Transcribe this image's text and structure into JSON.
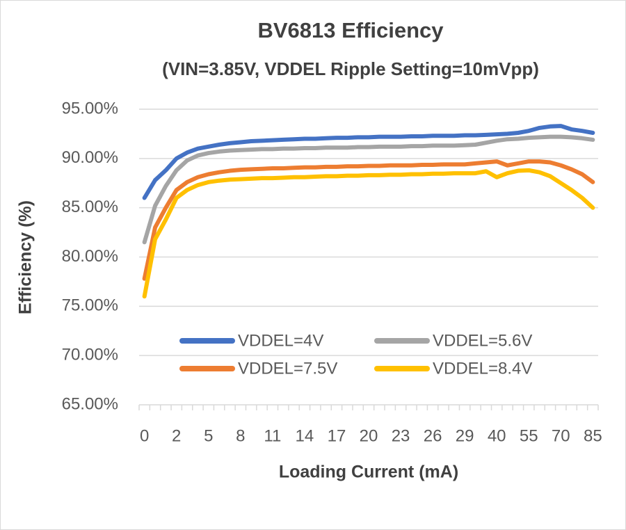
{
  "chart_data": {
    "type": "line",
    "title": "BV6813 Efficiency",
    "subtitle": "(VIN=3.85V, VDDEL Ripple Setting=10mVpp)",
    "x_label": "Loading Current (mA)",
    "y_label": "Efficiency (%)",
    "categories": [
      "0",
      null,
      null,
      "2",
      null,
      null,
      "5",
      null,
      null,
      "8",
      null,
      null,
      "11",
      null,
      null,
      "14",
      null,
      null,
      "17",
      null,
      null,
      "20",
      null,
      null,
      "23",
      null,
      null,
      "26",
      null,
      null,
      "29",
      null,
      null,
      "40",
      null,
      null,
      "55",
      null,
      null,
      "70",
      null,
      null,
      "85"
    ],
    "ylim": [
      65,
      95
    ],
    "yticks": [
      {
        "value": 65,
        "label": "65.00%"
      },
      {
        "value": 70,
        "label": "70.00%"
      },
      {
        "value": 75,
        "label": "75.00%"
      },
      {
        "value": 80,
        "label": "80.00%"
      },
      {
        "value": 85,
        "label": "85.00%"
      },
      {
        "value": 90,
        "label": "90.00%"
      },
      {
        "value": 95,
        "label": "95.00%"
      }
    ],
    "grid": true,
    "legend": "bottom",
    "series": [
      {
        "name": "VDDEL=4V",
        "color": "#4472c4",
        "values": [
          86.0,
          87.8,
          88.8,
          90.0,
          90.6,
          91.0,
          91.2,
          91.4,
          91.55,
          91.65,
          91.75,
          91.8,
          91.85,
          91.9,
          91.95,
          92.0,
          92.0,
          92.05,
          92.1,
          92.1,
          92.15,
          92.15,
          92.2,
          92.2,
          92.2,
          92.25,
          92.25,
          92.3,
          92.3,
          92.3,
          92.35,
          92.35,
          92.4,
          92.45,
          92.5,
          92.6,
          92.8,
          93.1,
          93.25,
          93.3,
          92.95,
          92.8,
          92.6
        ]
      },
      {
        "name": "VDDEL=5.6V",
        "color": "#a5a5a5",
        "values": [
          81.5,
          85.2,
          87.2,
          88.8,
          89.8,
          90.3,
          90.55,
          90.7,
          90.8,
          90.85,
          90.9,
          90.95,
          90.95,
          91.0,
          91.0,
          91.05,
          91.05,
          91.1,
          91.1,
          91.1,
          91.15,
          91.15,
          91.2,
          91.2,
          91.2,
          91.25,
          91.25,
          91.3,
          91.3,
          91.3,
          91.35,
          91.4,
          91.6,
          91.8,
          91.95,
          92.0,
          92.1,
          92.15,
          92.2,
          92.2,
          92.15,
          92.05,
          91.9
        ]
      },
      {
        "name": "VDDEL=7.5V",
        "color": "#ed7d31",
        "values": [
          77.8,
          83.0,
          85.0,
          86.8,
          87.6,
          88.1,
          88.4,
          88.6,
          88.75,
          88.85,
          88.9,
          88.95,
          89.0,
          89.0,
          89.05,
          89.1,
          89.1,
          89.15,
          89.15,
          89.2,
          89.2,
          89.25,
          89.25,
          89.3,
          89.3,
          89.3,
          89.35,
          89.35,
          89.4,
          89.4,
          89.4,
          89.5,
          89.6,
          89.7,
          89.3,
          89.5,
          89.7,
          89.7,
          89.6,
          89.3,
          88.9,
          88.4,
          87.6
        ]
      },
      {
        "name": "VDDEL=8.4V",
        "color": "#ffc000",
        "values": [
          76.0,
          81.8,
          83.8,
          86.0,
          86.8,
          87.3,
          87.6,
          87.75,
          87.85,
          87.9,
          87.95,
          88.0,
          88.0,
          88.05,
          88.1,
          88.1,
          88.15,
          88.2,
          88.2,
          88.25,
          88.25,
          88.3,
          88.3,
          88.35,
          88.35,
          88.4,
          88.4,
          88.45,
          88.45,
          88.5,
          88.5,
          88.5,
          88.7,
          88.1,
          88.5,
          88.75,
          88.8,
          88.6,
          88.2,
          87.5,
          86.8,
          86.0,
          85.0
        ]
      }
    ]
  }
}
